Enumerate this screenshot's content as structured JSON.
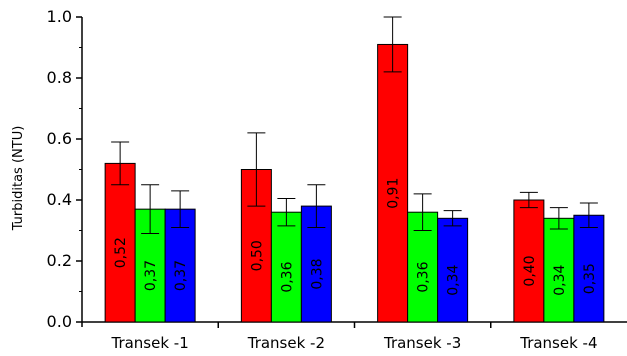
{
  "chart_data": {
    "type": "bar",
    "title": "",
    "xlabel": "",
    "ylabel": "Turbiditas (NTU)",
    "ylim": [
      0.0,
      1.0
    ],
    "yticks": [
      0.0,
      0.2,
      0.4,
      0.6,
      0.8,
      1.0
    ],
    "ytick_labels": [
      "0.0",
      "0.2",
      "0.4",
      "0.6",
      "0.8",
      "1.0"
    ],
    "grid": false,
    "legend": "none",
    "categories": [
      "Transek -1",
      "Transek -2",
      "Transek -3",
      "Transek -4"
    ],
    "series": [
      {
        "color": "#ff0000",
        "values": [
          0.52,
          0.5,
          0.91,
          0.4
        ],
        "errors": [
          0.07,
          0.12,
          0.09,
          0.025
        ],
        "labels": [
          "0,52",
          "0,50",
          "0,91",
          "0,40"
        ]
      },
      {
        "color": "#00ff00",
        "values": [
          0.37,
          0.36,
          0.36,
          0.34
        ],
        "errors": [
          0.08,
          0.045,
          0.06,
          0.035
        ],
        "labels": [
          "0,37",
          "0,36",
          "0,36",
          "0,34"
        ]
      },
      {
        "color": "#0000ff",
        "values": [
          0.37,
          0.38,
          0.34,
          0.35
        ],
        "errors": [
          0.06,
          0.07,
          0.025,
          0.04
        ],
        "labels": [
          "0,37",
          "0,38",
          "0,34",
          "0,35"
        ]
      }
    ]
  }
}
